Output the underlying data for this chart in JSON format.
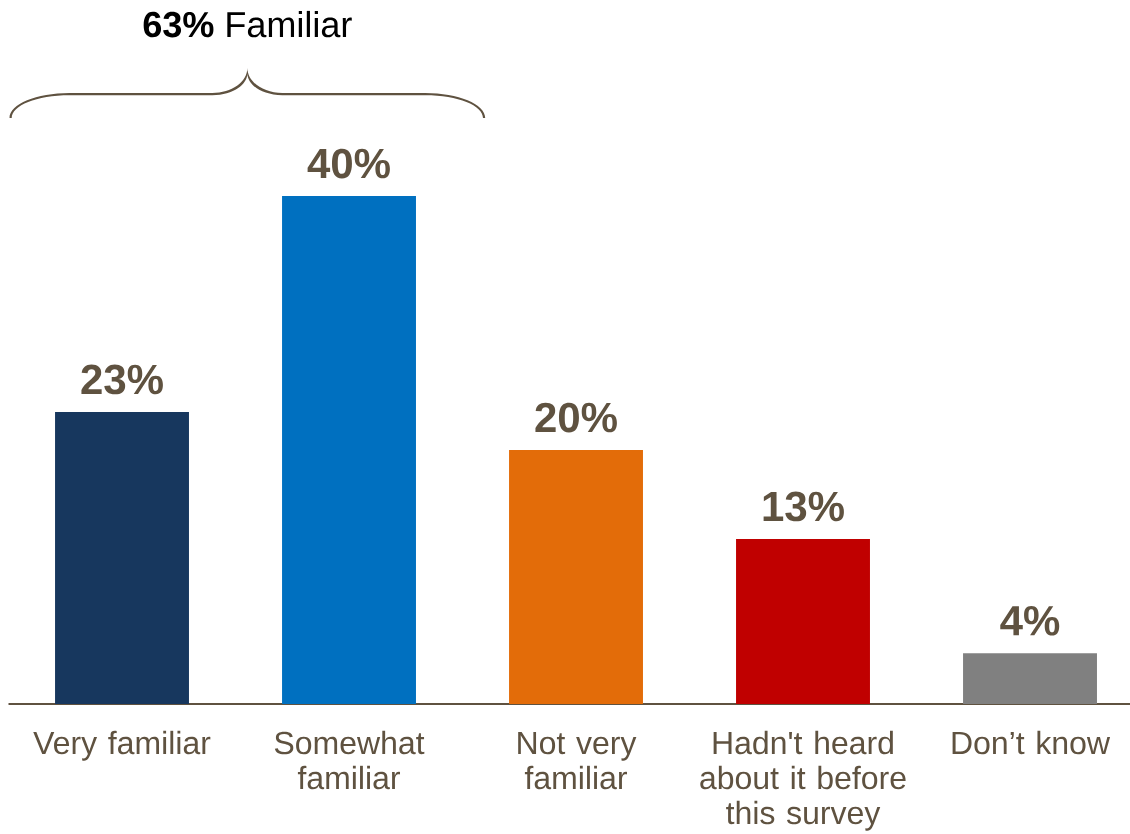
{
  "chart_data": {
    "type": "bar",
    "annotations": [
      "**63%** Familiar"
    ],
    "categories": [
      "Very familiar",
      "Somewhat familiar",
      "Not very familiar",
      "Hadn't heard about it before this survey",
      "Don’t know"
    ],
    "values": [
      23,
      40,
      20,
      13,
      4
    ],
    "colors": [
      "#17375e",
      "#0070c0",
      "#e36c09",
      "#c00000",
      "#808080"
    ],
    "value_labels": [
      "23%",
      "40%",
      "20%",
      "13%",
      "4%"
    ],
    "tick_labels": "x"
  }
}
